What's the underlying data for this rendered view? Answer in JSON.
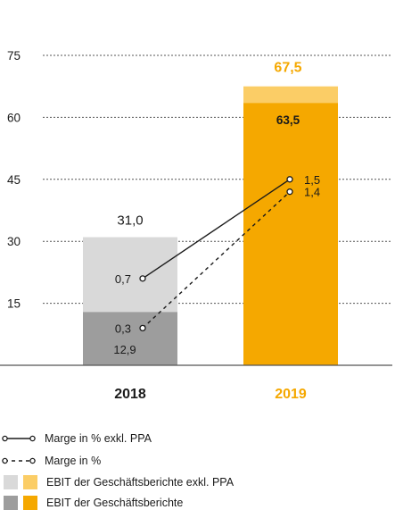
{
  "chart_data": {
    "type": "bar",
    "categories": [
      "2018",
      "2019"
    ],
    "ylim": [
      0,
      75
    ],
    "yticks": [
      15,
      30,
      45,
      60,
      75
    ],
    "grid": true,
    "series": [
      {
        "name": "EBIT der Geschäftsberichte",
        "values": [
          12.9,
          63.5
        ],
        "labels": [
          "12,9",
          "63,5"
        ]
      },
      {
        "name": "EBIT der Geschäftsberichte exkl. PPA",
        "values": [
          31.0,
          67.5
        ],
        "labels": [
          "31,0",
          "67,5"
        ]
      }
    ],
    "lines": [
      {
        "name": "Marge in % exkl. PPA",
        "style": "solid",
        "values": [
          0.7,
          1.5
        ],
        "labels": [
          "0,7",
          "1,5"
        ],
        "plot_y": [
          21,
          45
        ]
      },
      {
        "name": "Marge in %",
        "style": "dashed",
        "values": [
          0.3,
          1.4
        ],
        "labels": [
          "0,3",
          "1,4"
        ],
        "plot_y": [
          9,
          42
        ]
      }
    ],
    "colors": {
      "bar2018_base": "#9d9d9d",
      "bar2018_top": "#d9d9d9",
      "bar2019_base": "#f5a800",
      "bar2019_top": "#fbcd66",
      "highlight": "#f5a800",
      "line": "#1a1a1a"
    },
    "highlight_category": "2019"
  },
  "legend": [
    {
      "label": "Marge in % exkl. PPA",
      "kind": "line-solid"
    },
    {
      "label": "Marge in %",
      "kind": "line-dashed"
    },
    {
      "label": "EBIT der Geschäftsberichte exkl. PPA",
      "kind": "swatch-light"
    },
    {
      "label": "EBIT der Geschäftsberichte",
      "kind": "swatch-dark"
    }
  ]
}
